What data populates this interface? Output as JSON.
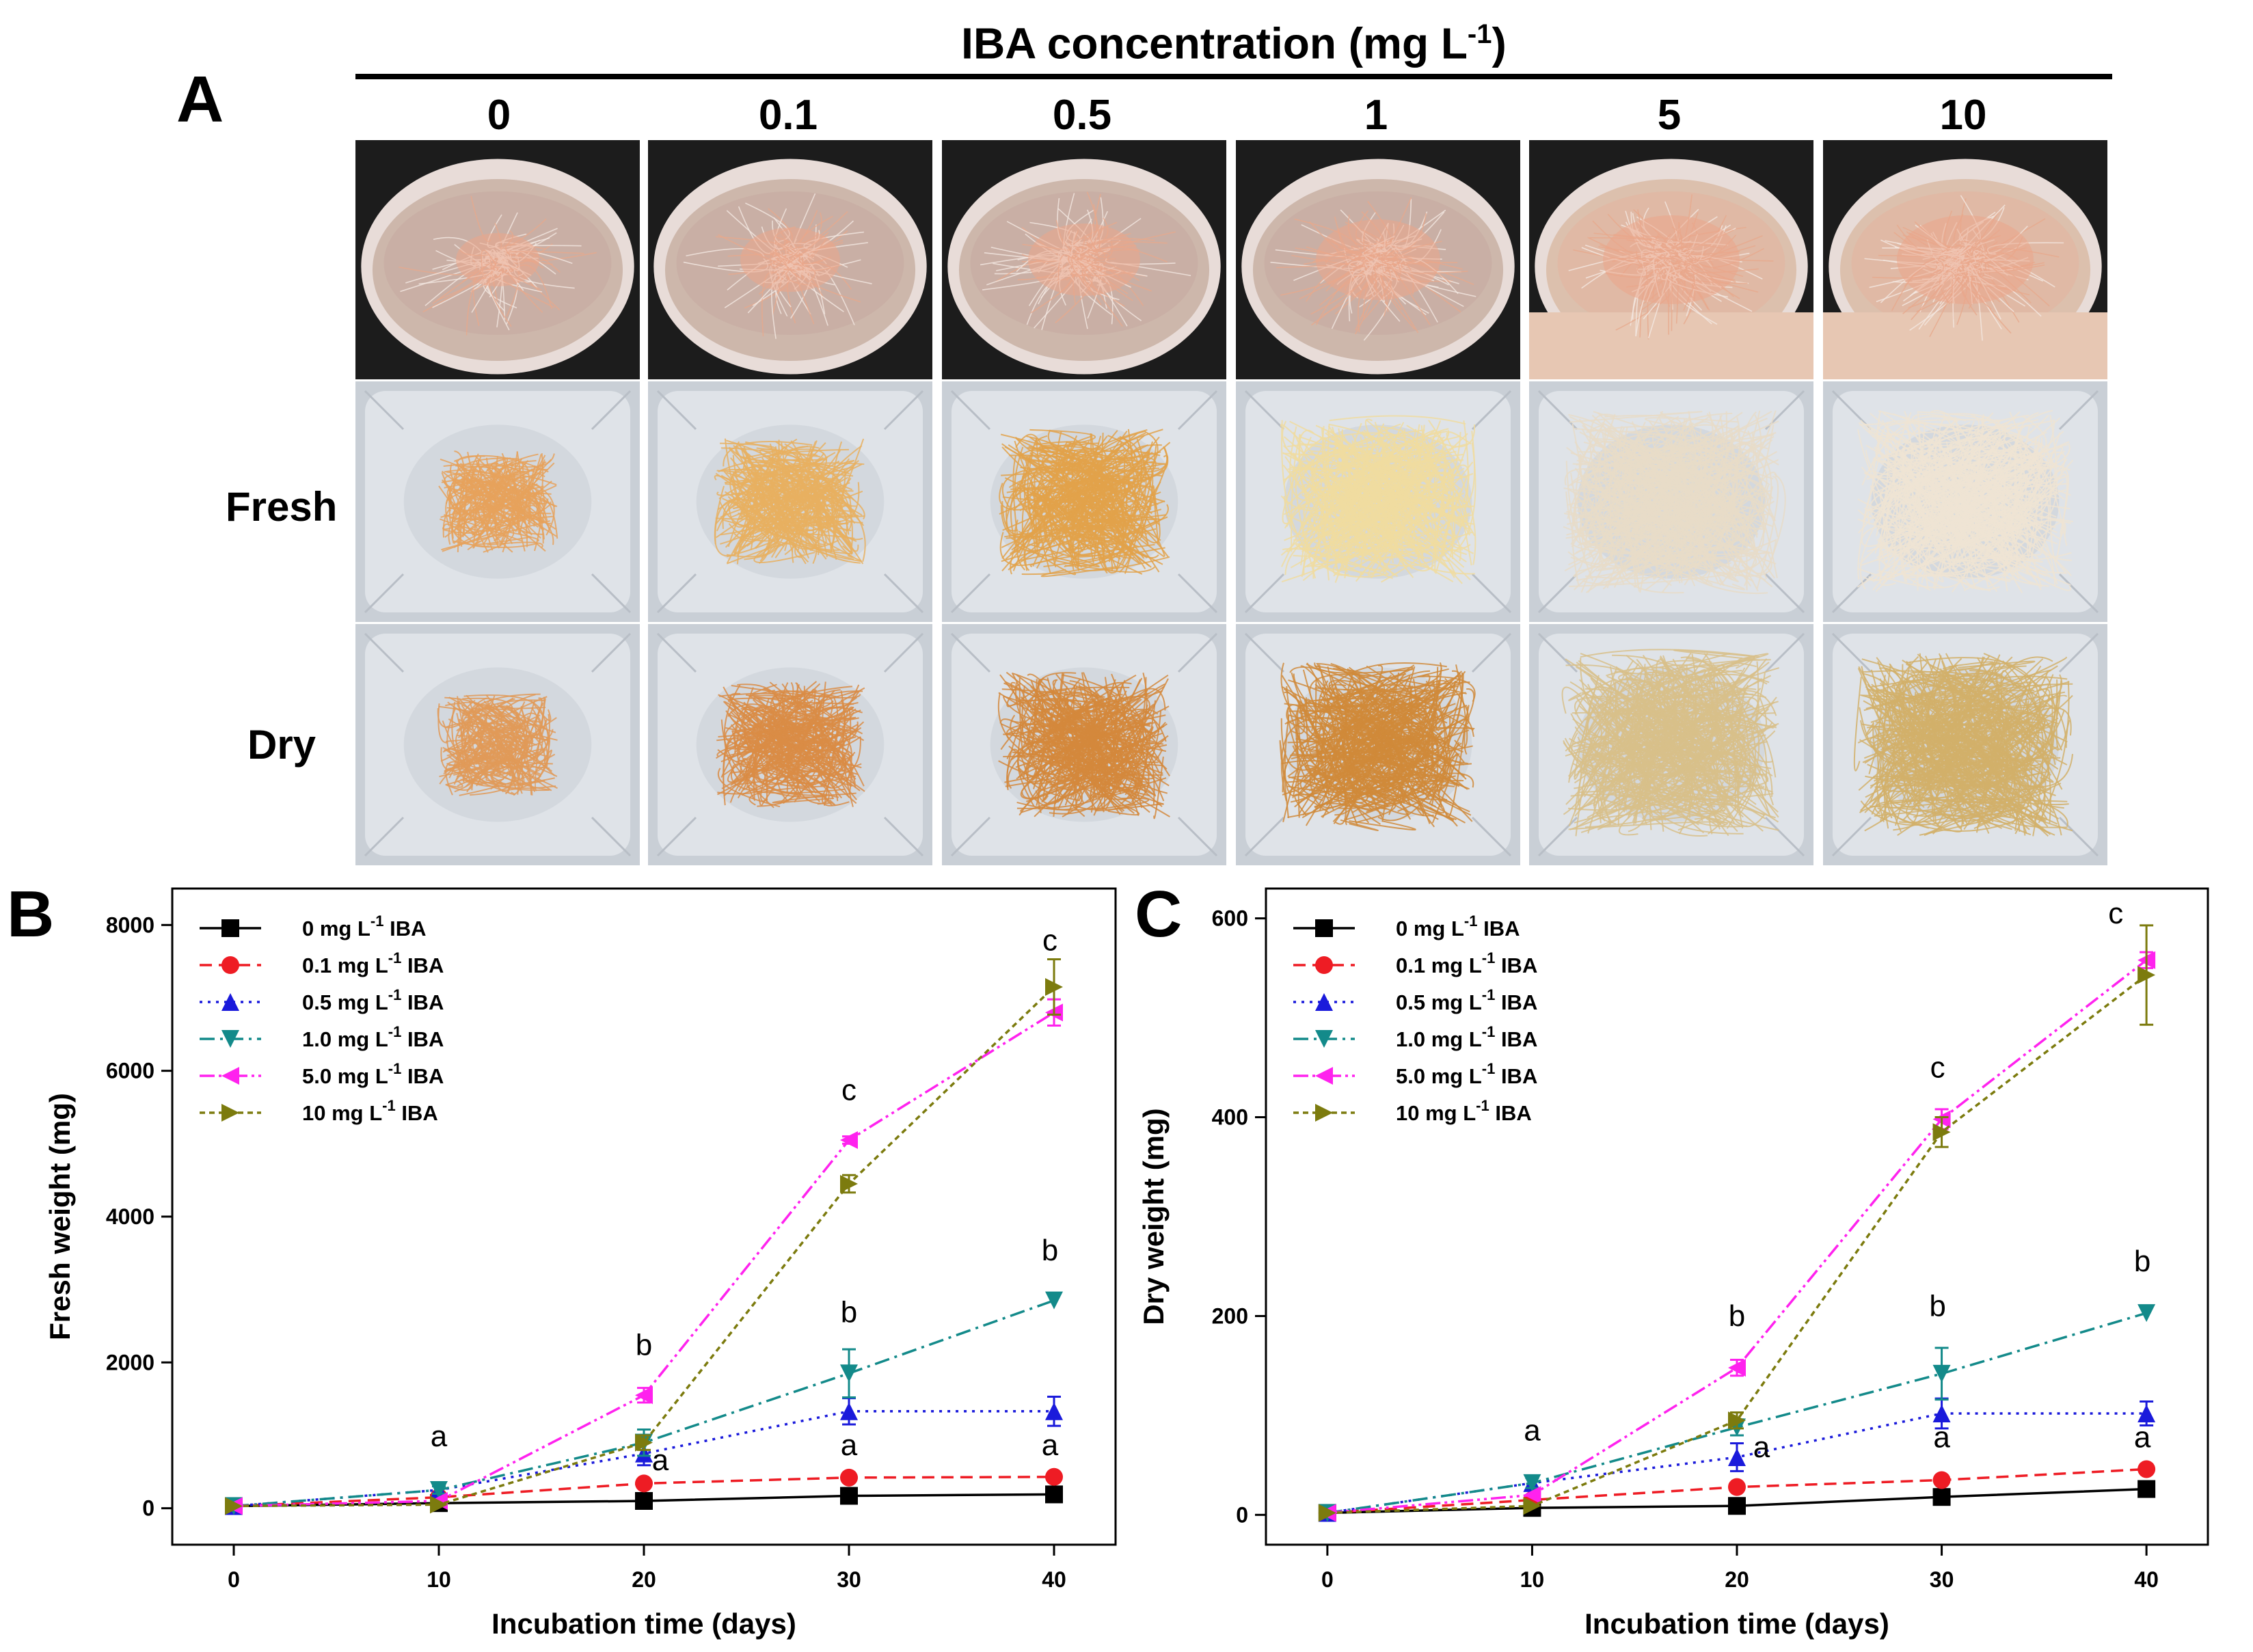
{
  "panel_a": {
    "letter": "A",
    "concentration_title": "IBA concentration (mg L",
    "concentration_title_sup": "-1",
    "concentration_title_end": ")",
    "columns": [
      "0",
      "0.1",
      "0.5",
      "1",
      "5",
      "10"
    ],
    "rows": [
      "Fresh",
      "Dry"
    ]
  },
  "panel_b": {
    "letter": "B"
  },
  "panel_c": {
    "letter": "C"
  },
  "chart_data": [
    {
      "type": "line",
      "panel": "B",
      "xlabel": "Incubation time (days)",
      "ylabel": "Fresh weight (mg)",
      "x": [
        0,
        10,
        20,
        30,
        40
      ],
      "xlim": [
        -3,
        43
      ],
      "ylim": [
        -500,
        8500
      ],
      "xticks": [
        "0",
        "10",
        "20",
        "30",
        "40"
      ],
      "yticks": [
        "0",
        "2000",
        "4000",
        "6000",
        "8000"
      ],
      "ytick_values": [
        0,
        2000,
        4000,
        6000,
        8000
      ],
      "legend": "top-left",
      "series": [
        {
          "name": "0 mg L-1 IBA",
          "label_main": "0 mg L",
          "label_sup": "-1",
          "label_end": " IBA",
          "color": "#000000",
          "marker": "square",
          "dash": "solid",
          "values": [
            30,
            70,
            100,
            170,
            190
          ],
          "errors": [
            0,
            0,
            0,
            0,
            0
          ]
        },
        {
          "name": "0.1 mg L-1 IBA",
          "label_main": "0.1 mg L",
          "label_sup": "-1",
          "label_end": " IBA",
          "color": "#ee1c24",
          "marker": "circle",
          "dash": "dashed",
          "values": [
            30,
            150,
            340,
            420,
            430
          ],
          "errors": [
            0,
            0,
            0,
            0,
            0
          ]
        },
        {
          "name": "0.5 mg L-1 IBA",
          "label_main": "0.5 mg L",
          "label_sup": "-1",
          "label_end": " IBA",
          "color": "#1a1adb",
          "marker": "triangle-up",
          "dash": "dotted",
          "values": [
            30,
            250,
            750,
            1330,
            1330
          ],
          "errors": [
            0,
            60,
            160,
            180,
            200
          ]
        },
        {
          "name": "1.0 mg L-1 IBA",
          "label_main": "1.0 mg L",
          "label_sup": "-1",
          "label_end": " IBA",
          "color": "#138a8a",
          "marker": "triangle-down",
          "dash": "dashdot",
          "values": [
            30,
            250,
            900,
            1850,
            2850
          ],
          "errors": [
            0,
            50,
            180,
            330,
            0
          ]
        },
        {
          "name": "5.0 mg L-1 IBA",
          "label_main": "5.0 mg L",
          "label_sup": "-1",
          "label_end": " IBA",
          "color": "#ff22ee",
          "marker": "triangle-left",
          "dash": "dashdotdot",
          "values": [
            30,
            100,
            1550,
            5050,
            6800
          ],
          "errors": [
            0,
            0,
            100,
            50,
            180
          ]
        },
        {
          "name": "10 mg L-1 IBA",
          "label_main": "10 mg L",
          "label_sup": "-1",
          "label_end": " IBA",
          "color": "#7c7b0e",
          "marker": "triangle-right",
          "dash": "shortdot",
          "values": [
            30,
            50,
            900,
            4450,
            7150
          ],
          "errors": [
            0,
            0,
            100,
            120,
            380
          ]
        }
      ],
      "annotations": [
        {
          "text": "a",
          "x": 10,
          "y": 850
        },
        {
          "text": "b",
          "x": 20,
          "y": 2100
        },
        {
          "text": "a",
          "x": 20.8,
          "y": 520
        },
        {
          "text": "c",
          "x": 30,
          "y": 5600
        },
        {
          "text": "b",
          "x": 30,
          "y": 2550
        },
        {
          "text": "a",
          "x": 30,
          "y": 730
        },
        {
          "text": "c",
          "x": 39.8,
          "y": 7650
        },
        {
          "text": "b",
          "x": 39.8,
          "y": 3400
        },
        {
          "text": "a",
          "x": 39.8,
          "y": 730
        }
      ]
    },
    {
      "type": "line",
      "panel": "C",
      "xlabel": "Incubation time (days)",
      "ylabel": "Dry weight (mg)",
      "x": [
        0,
        10,
        20,
        30,
        40
      ],
      "xlim": [
        -3,
        43
      ],
      "ylim": [
        -30,
        630
      ],
      "xticks": [
        "0",
        "10",
        "20",
        "30",
        "40"
      ],
      "yticks": [
        "0",
        "200",
        "400",
        "600"
      ],
      "ytick_values": [
        0,
        200,
        400,
        600
      ],
      "legend": "top-left",
      "series": [
        {
          "name": "0 mg L-1 IBA",
          "label_main": "0 mg L",
          "label_sup": "-1",
          "label_end": " IBA",
          "color": "#000000",
          "marker": "square",
          "dash": "solid",
          "values": [
            2,
            7,
            9,
            18,
            26
          ],
          "errors": [
            0,
            0,
            0,
            0,
            0
          ]
        },
        {
          "name": "0.1 mg L-1 IBA",
          "label_main": "0.1 mg L",
          "label_sup": "-1",
          "label_end": " IBA",
          "color": "#ee1c24",
          "marker": "circle",
          "dash": "dashed",
          "values": [
            2,
            15,
            28,
            35,
            46
          ],
          "errors": [
            0,
            0,
            0,
            0,
            0
          ]
        },
        {
          "name": "0.5 mg L-1 IBA",
          "label_main": "0.5 mg L",
          "label_sup": "-1",
          "label_end": " IBA",
          "color": "#1a1adb",
          "marker": "triangle-up",
          "dash": "dotted",
          "values": [
            2,
            32,
            58,
            102,
            102
          ],
          "errors": [
            0,
            6,
            14,
            15,
            12
          ]
        },
        {
          "name": "1.0 mg L-1 IBA",
          "label_main": "1.0 mg L",
          "label_sup": "-1",
          "label_end": " IBA",
          "color": "#138a8a",
          "marker": "triangle-down",
          "dash": "dashdot",
          "values": [
            2,
            32,
            88,
            142,
            203
          ],
          "errors": [
            0,
            5,
            8,
            26,
            0
          ]
        },
        {
          "name": "5.0 mg L-1 IBA",
          "label_main": "5.0 mg L",
          "label_sup": "-1",
          "label_end": " IBA",
          "color": "#ff22ee",
          "marker": "triangle-left",
          "dash": "dashdotdot",
          "values": [
            2,
            20,
            148,
            398,
            558
          ],
          "errors": [
            0,
            0,
            8,
            10,
            8
          ]
        },
        {
          "name": "10 mg L-1 IBA",
          "label_main": "10 mg L",
          "label_sup": "-1",
          "label_end": " IBA",
          "color": "#7c7b0e",
          "marker": "triangle-right",
          "dash": "shortdot",
          "values": [
            2,
            9,
            95,
            385,
            543
          ],
          "errors": [
            0,
            0,
            8,
            15,
            50
          ]
        }
      ],
      "annotations": [
        {
          "text": "a",
          "x": 10,
          "y": 75
        },
        {
          "text": "b",
          "x": 20,
          "y": 190
        },
        {
          "text": "a",
          "x": 21.2,
          "y": 58
        },
        {
          "text": "c",
          "x": 29.8,
          "y": 440
        },
        {
          "text": "b",
          "x": 29.8,
          "y": 200
        },
        {
          "text": "a",
          "x": 30,
          "y": 68
        },
        {
          "text": "c",
          "x": 38.5,
          "y": 595
        },
        {
          "text": "b",
          "x": 39.8,
          "y": 245
        },
        {
          "text": "a",
          "x": 39.8,
          "y": 68
        }
      ]
    }
  ]
}
